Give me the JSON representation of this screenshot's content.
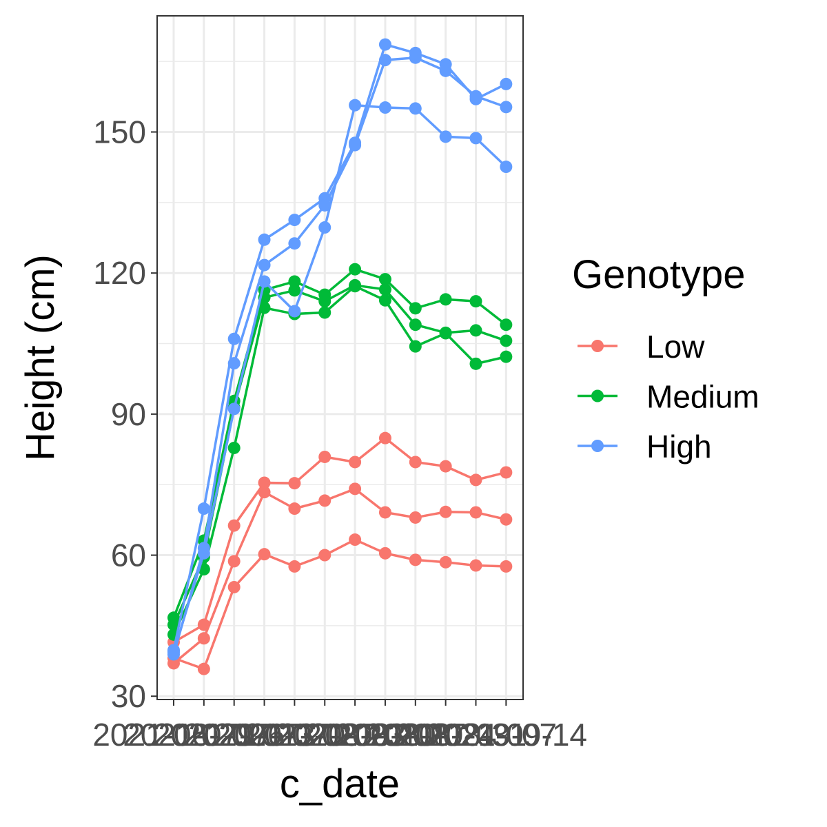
{
  "chart_data": {
    "type": "line",
    "xlabel": "c_date",
    "ylabel": "Height (cm)",
    "x_tick_labels": [
      "2021-06-29",
      "2021-07-06",
      "2021-07-13",
      "2021-07-20",
      "2021-07-27",
      "2021-08-03",
      "2021-08-10",
      "2021-08-17",
      "2021-08-24",
      "2021-08-31",
      "2021-09-07",
      "2021-09-14"
    ],
    "y_ticks": [
      30,
      60,
      90,
      120,
      150
    ],
    "ylim": [
      29.3,
      174.7
    ],
    "grid": true,
    "legend": {
      "title": "Genotype",
      "position": "right",
      "entries": [
        "Low",
        "Medium",
        "High"
      ]
    },
    "series": [
      {
        "name": "Low",
        "color": "#F8766D",
        "values": [
          41.5,
          45.2,
          66.3,
          75.4,
          75.3,
          80.9,
          79.8,
          84.9,
          79.8,
          78.9,
          76.0,
          77.6
        ]
      },
      {
        "name": "Low",
        "color": "#F8766D",
        "values": [
          37.0,
          42.3,
          58.7,
          73.4,
          69.9,
          71.6,
          74.1,
          69.1,
          68.0,
          69.2,
          69.1,
          67.6
        ]
      },
      {
        "name": "Low",
        "color": "#F8766D",
        "values": [
          38.1,
          35.8,
          53.2,
          60.2,
          57.6,
          60.0,
          63.3,
          60.4,
          59.0,
          58.5,
          57.8,
          57.6
        ]
      },
      {
        "name": "Medium",
        "color": "#00BA38",
        "values": [
          46.7,
          63.1,
          92.8,
          116.4,
          118.2,
          115.4,
          120.8,
          118.7,
          112.5,
          114.4,
          114.0,
          109.0
        ]
      },
      {
        "name": "Medium",
        "color": "#00BA38",
        "values": [
          45.2,
          59.6,
          91.4,
          114.8,
          116.3,
          114.0,
          117.4,
          116.5,
          109.0,
          107.3,
          107.8,
          105.6
        ]
      },
      {
        "name": "Medium",
        "color": "#00BA38",
        "values": [
          43.1,
          57.0,
          82.8,
          112.6,
          111.3,
          111.6,
          117.2,
          114.2,
          104.4,
          107.2,
          100.7,
          102.2
        ]
      },
      {
        "name": "High",
        "color": "#619CFF",
        "values": [
          39.8,
          69.9,
          106.0,
          127.1,
          131.3,
          135.9,
          147.7,
          168.6,
          166.8,
          164.4,
          157.0,
          160.2
        ]
      },
      {
        "name": "High",
        "color": "#619CFF",
        "values": [
          38.9,
          61.5,
          100.8,
          121.7,
          126.3,
          134.4,
          147.2,
          165.3,
          165.8,
          163.0,
          157.6,
          155.3
        ]
      },
      {
        "name": "High",
        "color": "#619CFF",
        "values": [
          39.4,
          60.4,
          91.1,
          118.2,
          111.9,
          129.7,
          155.7,
          155.2,
          155.0,
          149.0,
          148.7,
          142.6
        ]
      }
    ]
  }
}
